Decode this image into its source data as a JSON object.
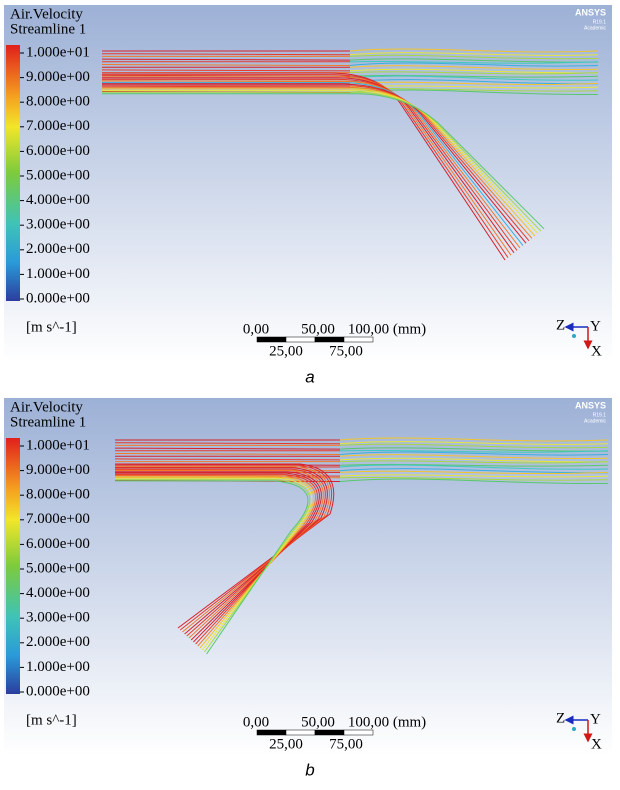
{
  "panels": [
    {
      "title": "Air.Velocity",
      "subtitle": "Streamline 1",
      "brand": "ANSYS",
      "version": "R19.1",
      "edition": "Academic",
      "legend_labels": [
        "1.000e+01",
        "9.000e+00",
        "8.000e+00",
        "7.000e+00",
        "6.000e+00",
        "5.000e+00",
        "4.000e+00",
        "3.000e+00",
        "2.000e+00",
        "1.000e+00",
        "0.000e+00"
      ],
      "unit": "[m s^-1]",
      "scale_top": [
        "0,00",
        "50,00",
        "100,00 (mm)"
      ],
      "scale_bottom": [
        "25,00",
        "75,00"
      ],
      "axes": {
        "z": "Z",
        "y": "Y",
        "x": "X"
      },
      "caption": "a"
    },
    {
      "title": "Air.Velocity",
      "subtitle": "Streamline 1",
      "brand": "ANSYS",
      "version": "R19.1",
      "edition": "Academic",
      "legend_labels": [
        "1.000e+01",
        "9.000e+00",
        "8.000e+00",
        "7.000e+00",
        "6.000e+00",
        "5.000e+00",
        "4.000e+00",
        "3.000e+00",
        "2.000e+00",
        "1.000e+00",
        "0.000e+00"
      ],
      "unit": "[m s^-1]",
      "scale_top": [
        "0,00",
        "50,00",
        "100,00 (mm)"
      ],
      "scale_bottom": [
        "25,00",
        "75,00"
      ],
      "axes": {
        "z": "Z",
        "y": "Y",
        "x": "X"
      },
      "caption": "b"
    }
  ]
}
